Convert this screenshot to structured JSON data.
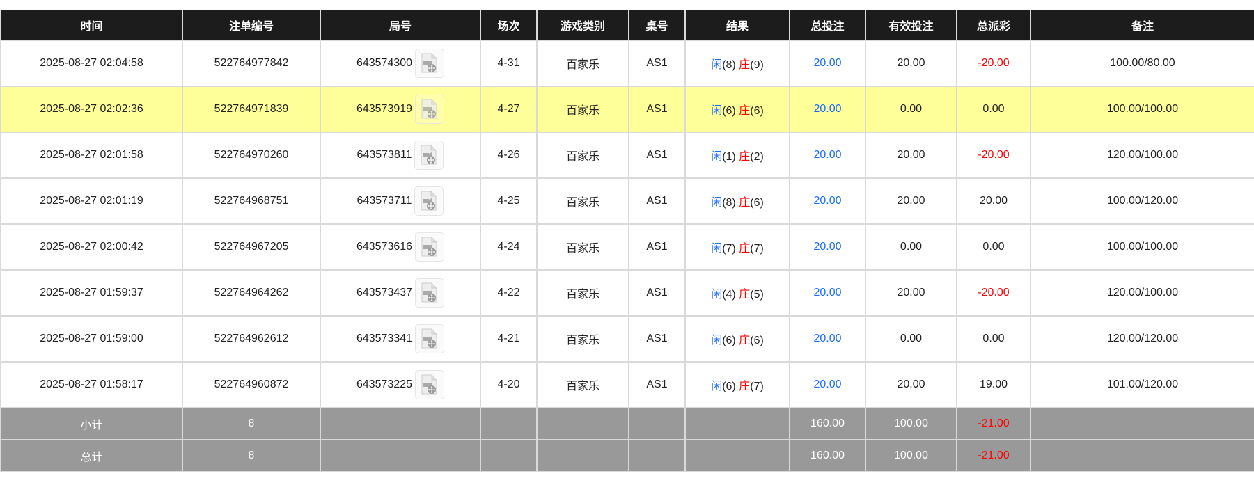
{
  "columns": [
    "时间",
    "注单编号",
    "局号",
    "场次",
    "游戏类别",
    "桌号",
    "结果",
    "总投注",
    "有效投注",
    "总派彩",
    "备注"
  ],
  "result_labels": {
    "player": "闲",
    "banker": "庄"
  },
  "rows": [
    {
      "time": "2025-08-27 02:04:58",
      "bet_id": "522764977842",
      "round_id": "643574300",
      "session": "4-31",
      "game": "百家乐",
      "table": "AS1",
      "player": "(8)",
      "banker": "(9)",
      "total_bet": "20.00",
      "valid_bet": "20.00",
      "payout": "-20.00",
      "payout_negative": true,
      "remark": "100.00/80.00",
      "highlighted": false
    },
    {
      "time": "2025-08-27 02:02:36",
      "bet_id": "522764971839",
      "round_id": "643573919",
      "session": "4-27",
      "game": "百家乐",
      "table": "AS1",
      "player": "(6)",
      "banker": "(6)",
      "total_bet": "20.00",
      "valid_bet": "0.00",
      "payout": "0.00",
      "payout_negative": false,
      "remark": "100.00/100.00",
      "highlighted": true
    },
    {
      "time": "2025-08-27 02:01:58",
      "bet_id": "522764970260",
      "round_id": "643573811",
      "session": "4-26",
      "game": "百家乐",
      "table": "AS1",
      "player": "(1)",
      "banker": "(2)",
      "total_bet": "20.00",
      "valid_bet": "20.00",
      "payout": "-20.00",
      "payout_negative": true,
      "remark": "120.00/100.00",
      "highlighted": false
    },
    {
      "time": "2025-08-27 02:01:19",
      "bet_id": "522764968751",
      "round_id": "643573711",
      "session": "4-25",
      "game": "百家乐",
      "table": "AS1",
      "player": "(8)",
      "banker": "(6)",
      "total_bet": "20.00",
      "valid_bet": "20.00",
      "payout": "20.00",
      "payout_negative": false,
      "remark": "100.00/120.00",
      "highlighted": false
    },
    {
      "time": "2025-08-27 02:00:42",
      "bet_id": "522764967205",
      "round_id": "643573616",
      "session": "4-24",
      "game": "百家乐",
      "table": "AS1",
      "player": "(7)",
      "banker": "(7)",
      "total_bet": "20.00",
      "valid_bet": "0.00",
      "payout": "0.00",
      "payout_negative": false,
      "remark": "100.00/100.00",
      "highlighted": false
    },
    {
      "time": "2025-08-27 01:59:37",
      "bet_id": "522764964262",
      "round_id": "643573437",
      "session": "4-22",
      "game": "百家乐",
      "table": "AS1",
      "player": "(4)",
      "banker": "(5)",
      "total_bet": "20.00",
      "valid_bet": "20.00",
      "payout": "-20.00",
      "payout_negative": true,
      "remark": "120.00/100.00",
      "highlighted": false
    },
    {
      "time": "2025-08-27 01:59:00",
      "bet_id": "522764962612",
      "round_id": "643573341",
      "session": "4-21",
      "game": "百家乐",
      "table": "AS1",
      "player": "(6)",
      "banker": "(6)",
      "total_bet": "20.00",
      "valid_bet": "0.00",
      "payout": "0.00",
      "payout_negative": false,
      "remark": "120.00/120.00",
      "highlighted": false
    },
    {
      "time": "2025-08-27 01:58:17",
      "bet_id": "522764960872",
      "round_id": "643573225",
      "session": "4-20",
      "game": "百家乐",
      "table": "AS1",
      "player": "(6)",
      "banker": "(7)",
      "total_bet": "20.00",
      "valid_bet": "20.00",
      "payout": "19.00",
      "payout_negative": false,
      "remark": "101.00/120.00",
      "highlighted": false
    }
  ],
  "subtotal": {
    "label": "小计",
    "count": "8",
    "total_bet": "160.00",
    "valid_bet": "100.00",
    "payout": "-21.00"
  },
  "total": {
    "label": "总计",
    "count": "8",
    "total_bet": "160.00",
    "valid_bet": "100.00",
    "payout": "-21.00"
  },
  "colors": {
    "header_bg": "#1c1c1c",
    "highlight_row": "#ffff99",
    "footer_bg": "#999999",
    "blue": "#1a6cff",
    "red": "#ff0000"
  },
  "icons": {
    "replay": "video-file-icon"
  }
}
